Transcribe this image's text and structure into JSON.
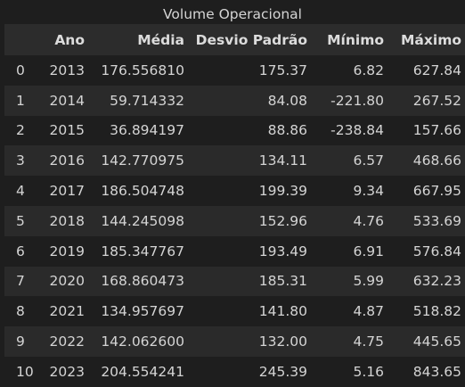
{
  "table": {
    "caption": "Volume Operacional",
    "columns": [
      "",
      "Ano",
      "Média",
      "Desvio Padrão",
      "Mínimo",
      "Máximo"
    ],
    "rows": [
      [
        "0",
        "2013",
        "176.556810",
        "175.37",
        "6.82",
        "627.84"
      ],
      [
        "1",
        "2014",
        "59.714332",
        "84.08",
        "-221.80",
        "267.52"
      ],
      [
        "2",
        "2015",
        "36.894197",
        "88.86",
        "-238.84",
        "157.66"
      ],
      [
        "3",
        "2016",
        "142.770975",
        "134.11",
        "6.57",
        "468.66"
      ],
      [
        "4",
        "2017",
        "186.504748",
        "199.39",
        "9.34",
        "667.95"
      ],
      [
        "5",
        "2018",
        "144.245098",
        "152.96",
        "4.76",
        "533.69"
      ],
      [
        "6",
        "2019",
        "185.347767",
        "193.49",
        "6.91",
        "576.84"
      ],
      [
        "7",
        "2020",
        "168.860473",
        "185.31",
        "5.99",
        "632.23"
      ],
      [
        "8",
        "2021",
        "134.957697",
        "141.80",
        "4.87",
        "518.82"
      ],
      [
        "9",
        "2022",
        "142.062600",
        "132.00",
        "4.75",
        "445.65"
      ],
      [
        "10",
        "2023",
        "204.554241",
        "245.39",
        "5.16",
        "843.65"
      ]
    ]
  }
}
